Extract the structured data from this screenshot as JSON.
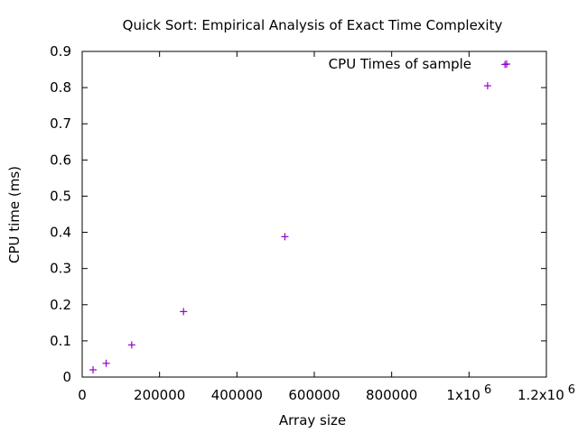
{
  "chart_data": {
    "type": "scatter",
    "title": "Quick Sort: Empirical Analysis of Exact Time Complexity",
    "xlabel": "Array size",
    "ylabel": "CPU time (ms)",
    "xlim": [
      0,
      1200000
    ],
    "ylim": [
      0,
      0.9
    ],
    "x_ticks": [
      {
        "value": 0,
        "label": "0"
      },
      {
        "value": 200000,
        "label": "200000"
      },
      {
        "value": 400000,
        "label": "400000"
      },
      {
        "value": 600000,
        "label": "600000"
      },
      {
        "value": 800000,
        "label": "800000"
      },
      {
        "value": 1000000,
        "label": "1x10",
        "exp": "6"
      },
      {
        "value": 1200000,
        "label": "1.2x10",
        "exp": "6"
      }
    ],
    "y_ticks": [
      {
        "value": 0,
        "label": "0"
      },
      {
        "value": 0.1,
        "label": "0.1"
      },
      {
        "value": 0.2,
        "label": "0.2"
      },
      {
        "value": 0.3,
        "label": "0.3"
      },
      {
        "value": 0.4,
        "label": "0.4"
      },
      {
        "value": 0.5,
        "label": "0.5"
      },
      {
        "value": 0.6,
        "label": "0.6"
      },
      {
        "value": 0.7,
        "label": "0.7"
      },
      {
        "value": 0.8,
        "label": "0.8"
      },
      {
        "value": 0.9,
        "label": "0.9"
      }
    ],
    "legend_position": "top-right",
    "grid": false,
    "series": [
      {
        "name": "CPU Times of sample",
        "marker": "plus",
        "color": "#9400d3",
        "points": [
          {
            "x": 28000,
            "y": 0.02
          },
          {
            "x": 62000,
            "y": 0.038
          },
          {
            "x": 128000,
            "y": 0.089
          },
          {
            "x": 262000,
            "y": 0.181
          },
          {
            "x": 524000,
            "y": 0.388
          },
          {
            "x": 1048000,
            "y": 0.805
          },
          {
            "x": 1093000,
            "y": 0.864
          }
        ]
      }
    ]
  }
}
